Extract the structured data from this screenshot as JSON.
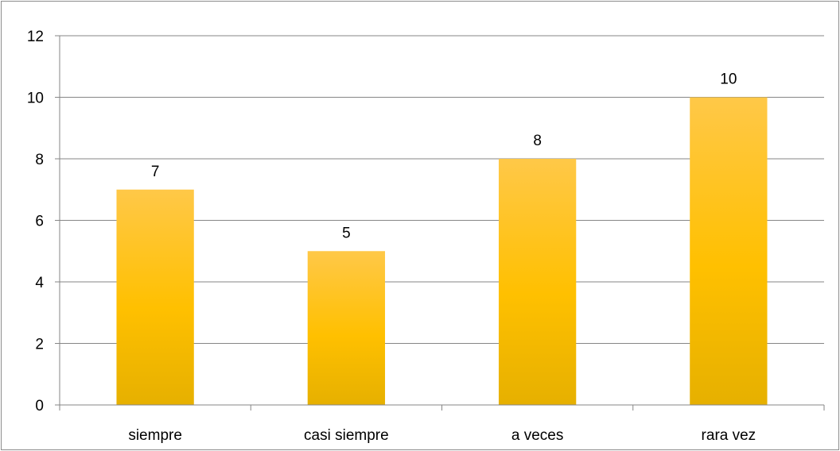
{
  "chart_data": {
    "type": "bar",
    "title": "",
    "xlabel": "",
    "ylabel": "",
    "categories": [
      "siempre",
      "casi siempre",
      "a veces",
      "rara vez"
    ],
    "values": [
      7,
      5,
      8,
      10
    ],
    "ylim": [
      0,
      12
    ],
    "yticks": [
      0,
      2,
      4,
      6,
      8,
      10,
      12
    ],
    "grid": true,
    "legend": "none",
    "data_labels": true,
    "colors": {
      "bar_top": "#FFC848",
      "bar_mid": "#FFC000",
      "bar_bottom": "#E6B000",
      "grid": "#868686",
      "axis": "#868686"
    }
  }
}
